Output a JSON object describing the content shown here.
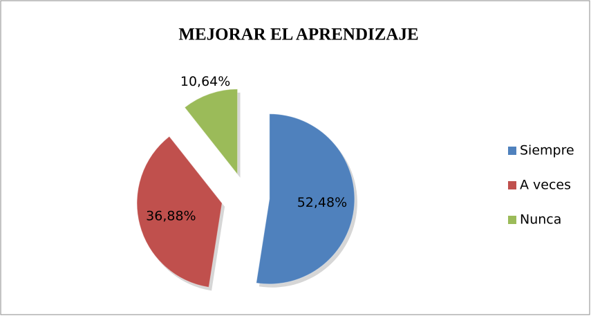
{
  "chart_data": {
    "type": "pie",
    "title": "MEJORAR EL APRENDIZAJE",
    "categories": [
      "Siempre",
      "A veces",
      "Nunca"
    ],
    "values": [
      52.48,
      36.88,
      10.64
    ],
    "value_labels": [
      "52,48%",
      "36,88%",
      "10,64%"
    ],
    "colors": [
      "#4f81bd",
      "#c0504d",
      "#9bbb59"
    ],
    "legend": "right"
  }
}
